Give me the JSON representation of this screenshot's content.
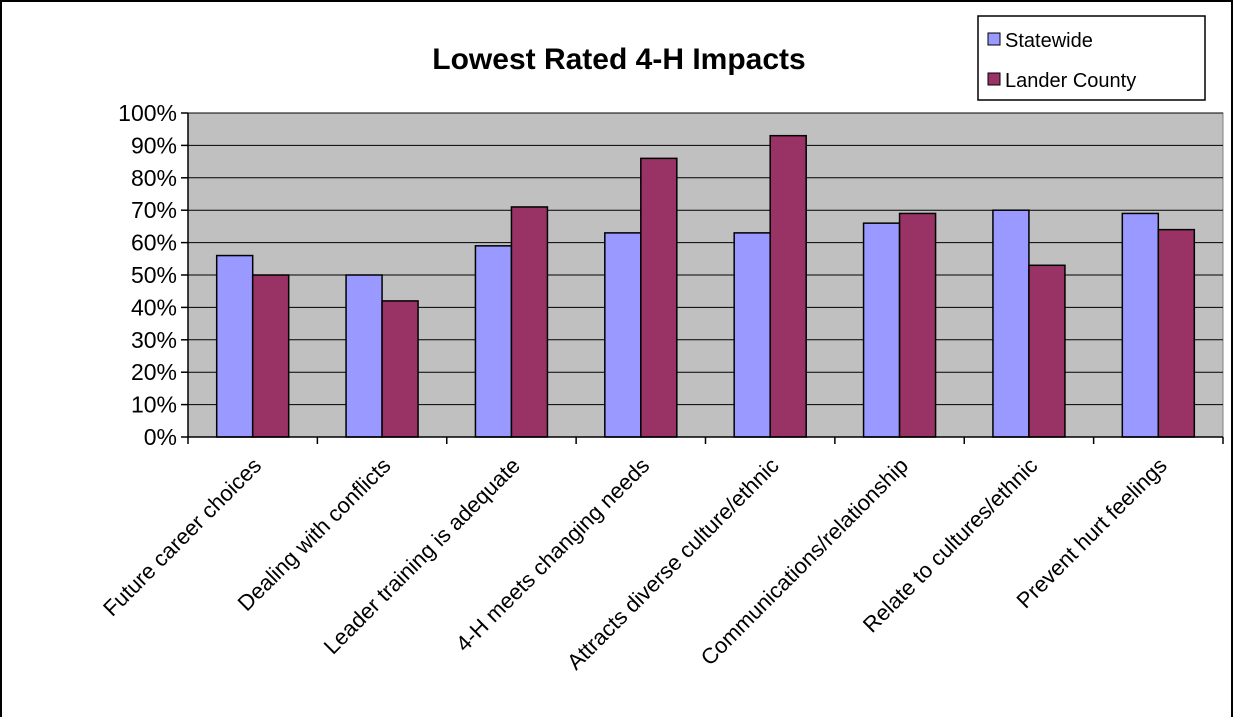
{
  "chart_data": {
    "type": "bar",
    "title": "Lowest Rated 4-H Impacts",
    "xlabel": "",
    "ylabel": "",
    "ylim": [
      0,
      100
    ],
    "yticks": [
      "0%",
      "10%",
      "20%",
      "30%",
      "40%",
      "50%",
      "60%",
      "70%",
      "80%",
      "90%",
      "100%"
    ],
    "grid": true,
    "legend_position": "top-right",
    "plot_background": "#c0c0c0",
    "categories": [
      "Future career choices",
      "Dealing with conflicts",
      "Leader training is adequate",
      "4-H meets changing needs",
      "Attracts diverse culture/ethnic",
      "Communications/relationship",
      "Relate to cultures/ethnic",
      "Prevent hurt feelings"
    ],
    "series": [
      {
        "name": "Statewide",
        "color": "#9999ff",
        "values": [
          56,
          50,
          59,
          63,
          63,
          66,
          70,
          69
        ]
      },
      {
        "name": "Lander County",
        "color": "#993366",
        "values": [
          50,
          42,
          71,
          86,
          93,
          69,
          53,
          64
        ]
      }
    ]
  }
}
